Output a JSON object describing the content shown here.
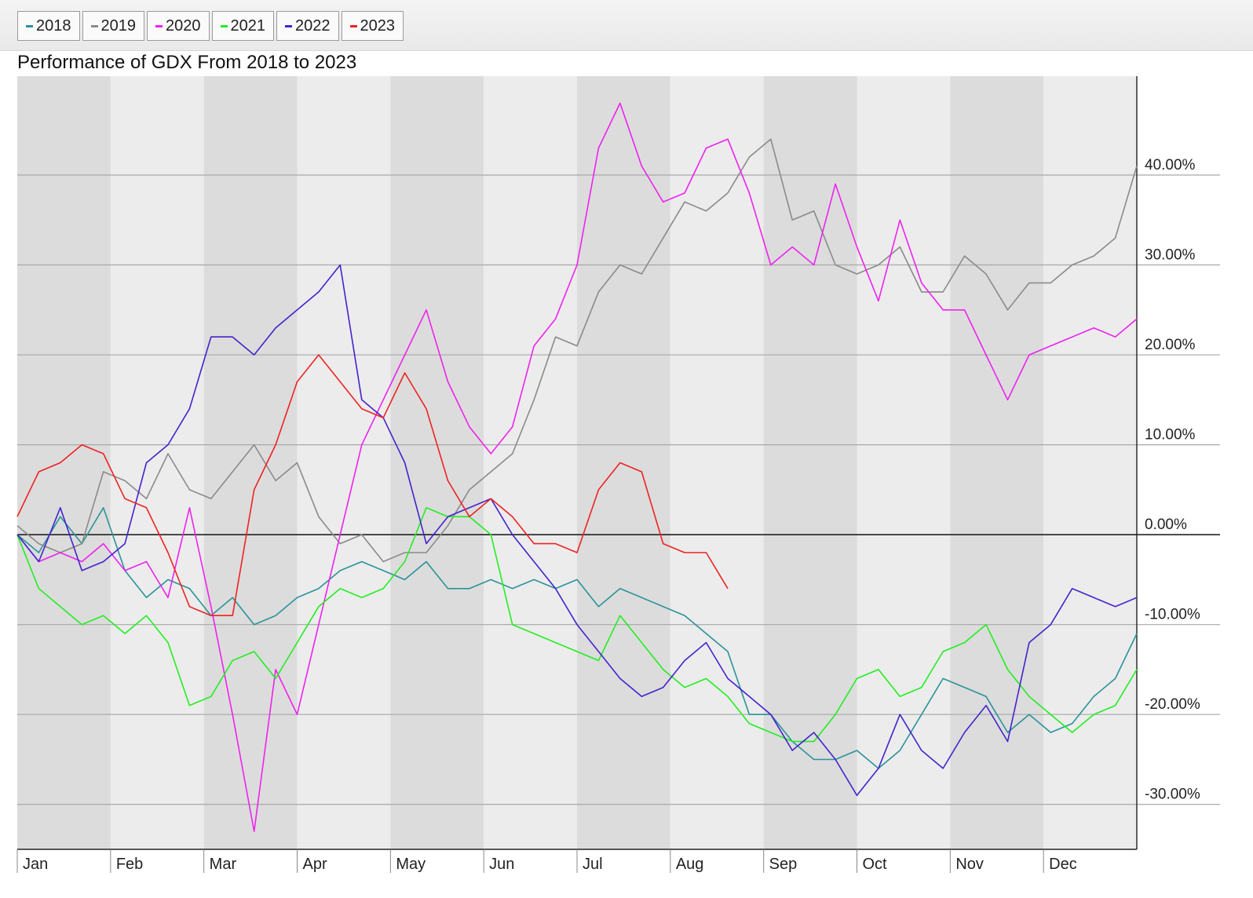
{
  "chart_data": {
    "type": "line",
    "title": "Performance of GDX From 2018 to 2023",
    "xlabel": "",
    "ylabel": "",
    "x_axis_type": "day-of-year",
    "x_ticks": [
      "Jan",
      "Feb",
      "Mar",
      "Apr",
      "May",
      "Jun",
      "Jul",
      "Aug",
      "Sep",
      "Oct",
      "Nov",
      "Dec"
    ],
    "y_ticks": [
      "-30.00%",
      "-20.00%",
      "-10.00%",
      "0.00%",
      "10.00%",
      "20.00%",
      "30.00%",
      "40.00%"
    ],
    "y_tick_values": [
      -30,
      -20,
      -10,
      0,
      10,
      20,
      30,
      40
    ],
    "ylim": [
      -35,
      51
    ],
    "xlim": [
      1,
      365
    ],
    "grid": true,
    "legend_position": "top-left",
    "series": [
      {
        "name": "2018",
        "color": "#2a9399",
        "x": [
          1,
          8,
          15,
          22,
          29,
          36,
          43,
          50,
          57,
          64,
          71,
          78,
          85,
          92,
          99,
          106,
          113,
          120,
          127,
          134,
          141,
          148,
          155,
          162,
          169,
          176,
          183,
          190,
          197,
          204,
          211,
          218,
          225,
          232,
          239,
          246,
          253,
          260,
          267,
          274,
          281,
          288,
          295,
          302,
          309,
          316,
          323,
          330,
          337,
          344,
          351,
          358,
          365
        ],
        "y": [
          0,
          -2,
          2,
          -1,
          3,
          -4,
          -7,
          -5,
          -6,
          -9,
          -7,
          -10,
          -9,
          -7,
          -6,
          -4,
          -3,
          -4,
          -5,
          -3,
          -6,
          -6,
          -5,
          -6,
          -5,
          -6,
          -5,
          -8,
          -6,
          -7,
          -8,
          -9,
          -11,
          -13,
          -20,
          -20,
          -23,
          -25,
          -25,
          -24,
          -26,
          -24,
          -20,
          -16,
          -17,
          -18,
          -22,
          -20,
          -22,
          -21,
          -18,
          -16,
          -11
        ]
      },
      {
        "name": "2019",
        "color": "#8a8a8a",
        "x": [
          1,
          8,
          15,
          22,
          29,
          36,
          43,
          50,
          57,
          64,
          71,
          78,
          85,
          92,
          99,
          106,
          113,
          120,
          127,
          134,
          141,
          148,
          155,
          162,
          169,
          176,
          183,
          190,
          197,
          204,
          211,
          218,
          225,
          232,
          239,
          246,
          253,
          260,
          267,
          274,
          281,
          288,
          295,
          302,
          309,
          316,
          323,
          330,
          337,
          344,
          351,
          358,
          365
        ],
        "y": [
          1,
          -1,
          -2,
          -1,
          7,
          6,
          4,
          9,
          5,
          4,
          7,
          10,
          6,
          8,
          2,
          -1,
          0,
          -3,
          -2,
          -2,
          1,
          5,
          7,
          9,
          15,
          22,
          21,
          27,
          30,
          29,
          33,
          37,
          36,
          38,
          42,
          44,
          35,
          36,
          30,
          29,
          30,
          32,
          27,
          27,
          31,
          29,
          25,
          28,
          28,
          30,
          31,
          33,
          41
        ]
      },
      {
        "name": "2020",
        "color": "#ee22ee",
        "x": [
          1,
          8,
          15,
          22,
          29,
          36,
          43,
          50,
          57,
          64,
          71,
          78,
          85,
          92,
          99,
          106,
          113,
          120,
          127,
          134,
          141,
          148,
          155,
          162,
          169,
          176,
          183,
          190,
          197,
          204,
          211,
          218,
          225,
          232,
          239,
          246,
          253,
          260,
          267,
          274,
          281,
          288,
          295,
          302,
          309,
          316,
          323,
          330,
          337,
          344,
          351,
          358,
          365
        ],
        "y": [
          0,
          -3,
          -2,
          -3,
          -1,
          -4,
          -3,
          -7,
          3,
          -8,
          -20,
          -33,
          -15,
          -20,
          -10,
          0,
          10,
          15,
          20,
          25,
          17,
          12,
          9,
          12,
          21,
          24,
          30,
          43,
          48,
          41,
          37,
          38,
          43,
          44,
          38,
          30,
          32,
          30,
          39,
          32,
          26,
          35,
          28,
          25,
          25,
          20,
          15,
          20,
          21,
          22,
          23,
          22,
          24
        ]
      },
      {
        "name": "2021",
        "color": "#22ee22",
        "x": [
          1,
          8,
          15,
          22,
          29,
          36,
          43,
          50,
          57,
          64,
          71,
          78,
          85,
          92,
          99,
          106,
          113,
          120,
          127,
          134,
          141,
          148,
          155,
          162,
          169,
          176,
          183,
          190,
          197,
          204,
          211,
          218,
          225,
          232,
          239,
          246,
          253,
          260,
          267,
          274,
          281,
          288,
          295,
          302,
          309,
          316,
          323,
          330,
          337,
          344,
          351,
          358,
          365
        ],
        "y": [
          0,
          -6,
          -8,
          -10,
          -9,
          -11,
          -9,
          -12,
          -19,
          -18,
          -14,
          -13,
          -16,
          -12,
          -8,
          -6,
          -7,
          -6,
          -3,
          3,
          2,
          2,
          0,
          -10,
          -11,
          -12,
          -13,
          -14,
          -9,
          -12,
          -15,
          -17,
          -16,
          -18,
          -21,
          -22,
          -23,
          -23,
          -20,
          -16,
          -15,
          -18,
          -17,
          -13,
          -12,
          -10,
          -15,
          -18,
          -20,
          -22,
          -20,
          -19,
          -15
        ]
      },
      {
        "name": "2022",
        "color": "#4422cc",
        "x": [
          1,
          8,
          15,
          22,
          29,
          36,
          43,
          50,
          57,
          64,
          71,
          78,
          85,
          92,
          99,
          106,
          113,
          120,
          127,
          134,
          141,
          148,
          155,
          162,
          169,
          176,
          183,
          190,
          197,
          204,
          211,
          218,
          225,
          232,
          239,
          246,
          253,
          260,
          267,
          274,
          281,
          288,
          295,
          302,
          309,
          316,
          323,
          330,
          337,
          344,
          351,
          358,
          365
        ],
        "y": [
          0,
          -3,
          3,
          -4,
          -3,
          -1,
          8,
          10,
          14,
          22,
          22,
          20,
          23,
          25,
          27,
          30,
          15,
          13,
          8,
          -1,
          2,
          3,
          4,
          0,
          -3,
          -6,
          -10,
          -13,
          -16,
          -18,
          -17,
          -14,
          -12,
          -16,
          -18,
          -20,
          -24,
          -22,
          -25,
          -29,
          -26,
          -20,
          -24,
          -26,
          -22,
          -19,
          -23,
          -12,
          -10,
          -6,
          -7,
          -8,
          -7
        ]
      },
      {
        "name": "2023",
        "color": "#ee2222",
        "x": [
          1,
          8,
          15,
          22,
          29,
          36,
          43,
          50,
          57,
          64,
          71,
          78,
          85,
          92,
          99,
          106,
          113,
          120,
          127,
          134,
          141,
          148,
          155,
          162,
          169,
          176,
          183,
          190,
          197,
          204,
          211,
          218,
          225,
          232
        ],
        "y": [
          2,
          7,
          8,
          10,
          9,
          4,
          3,
          -2,
          -8,
          -9,
          -9,
          5,
          10,
          17,
          20,
          17,
          14,
          13,
          18,
          14,
          6,
          2,
          4,
          2,
          -1,
          -1,
          -2,
          5,
          8,
          7,
          -1,
          -2,
          -2,
          -6
        ]
      }
    ]
  }
}
